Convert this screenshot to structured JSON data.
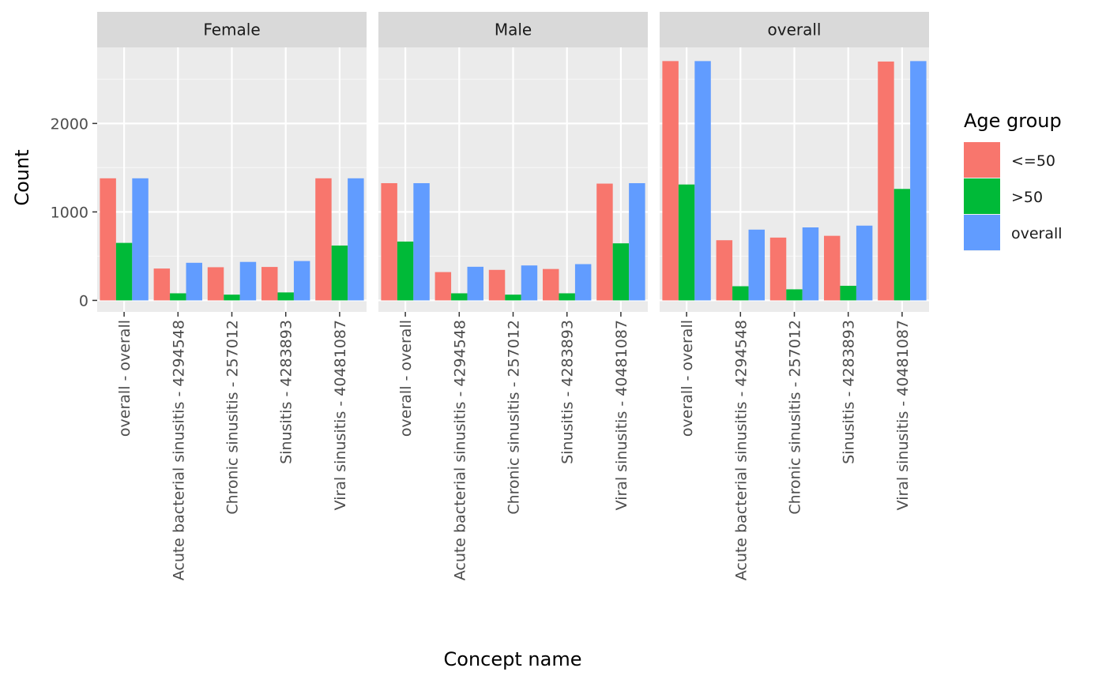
{
  "chart_data": {
    "type": "bar",
    "facets": [
      "Female",
      "Male",
      "overall"
    ],
    "categories": [
      "overall - overall",
      "Acute bacterial sinusitis - 4294548",
      "Chronic sinusitis - 257012",
      "Sinusitis - 4283893",
      "Viral sinusitis - 40481087"
    ],
    "series": [
      {
        "name": "<=50",
        "color": "#F8766D",
        "values": {
          "Female": [
            1380,
            360,
            375,
            378,
            1380
          ],
          "Male": [
            1325,
            320,
            345,
            355,
            1320
          ],
          "overall": [
            2705,
            680,
            710,
            730,
            2700
          ]
        }
      },
      {
        "name": ">50",
        "color": "#00BA38",
        "values": {
          "Female": [
            650,
            80,
            65,
            90,
            620
          ],
          "Male": [
            665,
            80,
            65,
            80,
            645
          ],
          "overall": [
            1310,
            160,
            125,
            165,
            1260
          ]
        }
      },
      {
        "name": "overall",
        "color": "#619CFF",
        "values": {
          "Female": [
            1380,
            425,
            435,
            445,
            1380
          ],
          "Male": [
            1325,
            380,
            395,
            410,
            1325
          ],
          "overall": [
            2705,
            800,
            825,
            845,
            2705
          ]
        }
      }
    ],
    "xlabel": "Concept name",
    "ylabel": "Count",
    "ylim": [
      -130,
      2860
    ],
    "yticks": [
      0,
      1000,
      2000
    ],
    "ytick_labels": [
      "0",
      "1000",
      "2000"
    ],
    "legend": {
      "title": "Age group",
      "placement": "right"
    },
    "grid": true,
    "colors": {
      "panel_bg": "#EBEBEB",
      "strip_bg": "#D9D9D9",
      "grid_major": "#FFFFFF"
    }
  }
}
